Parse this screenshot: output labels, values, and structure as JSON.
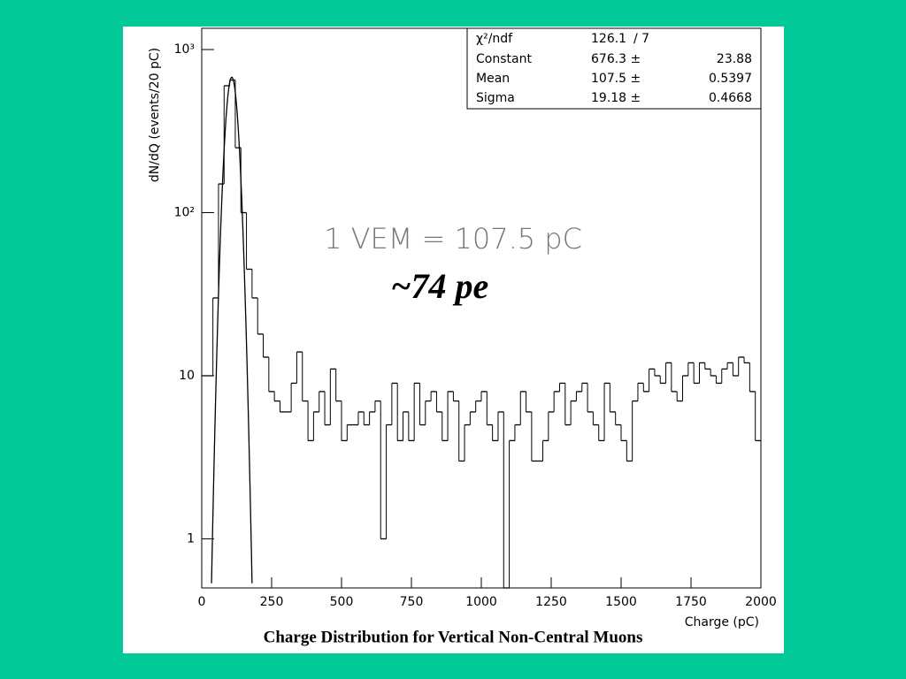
{
  "chart_data": {
    "type": "histogram",
    "title": "Charge Distribution for Vertical Non-Central Muons",
    "x_label": "Charge (pC)",
    "y_label": "dN/dQ (events/20 pC)",
    "annotations": [
      "1 VEM = 107.5 pC",
      "~74 pe"
    ],
    "bins": [
      0,
      20,
      40,
      60,
      80,
      100,
      120,
      140,
      160,
      180,
      200,
      220,
      240,
      260,
      280,
      300,
      320,
      340,
      360,
      380,
      400,
      420,
      440,
      460,
      480,
      500,
      520,
      540,
      560,
      580,
      600,
      620,
      640,
      660,
      680,
      700,
      720,
      740,
      760,
      780,
      800,
      820,
      840,
      860,
      880,
      900,
      920,
      940,
      960,
      980,
      1000,
      1020,
      1040,
      1060,
      1080,
      1100,
      1120,
      1140,
      1160,
      1180,
      1200,
      1220,
      1240,
      1260,
      1280,
      1300,
      1320,
      1340,
      1360,
      1380,
      1400,
      1420,
      1440,
      1460,
      1480,
      1500,
      1520,
      1540,
      1560,
      1580,
      1600,
      1620,
      1640,
      1660,
      1680,
      1700,
      1720,
      1740,
      1760,
      1780,
      1800,
      1820,
      1840,
      1860,
      1880,
      1900,
      1920,
      1940,
      1960,
      1980,
      2000
    ],
    "values": [
      10,
      10,
      30,
      150,
      600,
      650,
      250,
      100,
      45,
      30,
      18,
      13,
      8,
      7,
      6,
      6,
      9,
      14,
      7,
      4,
      6,
      8,
      5,
      11,
      7,
      4,
      5,
      5,
      6,
      5,
      6,
      7,
      1,
      5,
      9,
      4,
      6,
      4,
      9,
      5,
      7,
      8,
      6,
      4,
      8,
      7,
      3,
      5,
      6,
      7,
      8,
      5,
      4,
      6,
      0,
      4,
      5,
      8,
      6,
      3,
      3,
      4,
      6,
      8,
      9,
      5,
      7,
      8,
      9,
      6,
      5,
      4,
      9,
      6,
      5,
      4,
      3,
      7,
      9,
      8,
      11,
      10,
      9,
      12,
      8,
      7,
      10,
      12,
      9,
      12,
      11,
      10,
      9,
      11,
      12,
      10,
      13,
      12,
      8,
      4
    ],
    "color": "#000000",
    "xlim": [
      0,
      2000
    ],
    "xticks": [
      0,
      250,
      500,
      750,
      1000,
      1250,
      1500,
      1750,
      2000
    ],
    "ylim": [
      0.5,
      1350
    ],
    "yticks": [
      1,
      10,
      {
        "value": 100,
        "label": "10²"
      },
      {
        "value": 1000,
        "label": "10³"
      }
    ],
    "log_y": true,
    "fit": {
      "chi2_label": "χ²/ndf",
      "chi2": 126.1,
      "ndf": 7,
      "ndf_label": "/    7",
      "params": [
        {
          "name": "Constant",
          "value": 676.3,
          "value_label": "676.3 ±",
          "error": 23.88
        },
        {
          "name": "Mean",
          "value": 107.5,
          "value_label": "107.5 ±",
          "error": 0.5397
        },
        {
          "name": "Sigma",
          "value": 19.18,
          "value_label": "19.18 ±",
          "error": 0.4668
        }
      ]
    }
  }
}
